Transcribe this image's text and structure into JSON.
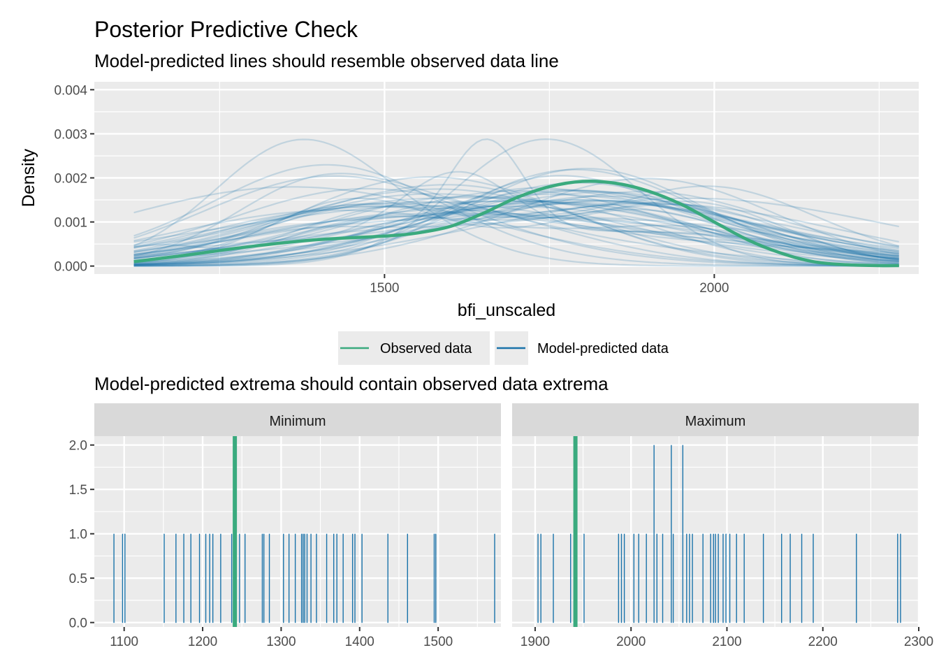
{
  "title": "Posterior Predictive Check",
  "subtitle": "Model-predicted lines should resemble observed data line",
  "subtitle2": "Model-predicted extrema should contain observed data extrema",
  "legend": {
    "observed": "Observed data",
    "predicted": "Model-predicted data",
    "placement": "bottom"
  },
  "colors": {
    "observed": "#3aaa7e",
    "predicted": "#1a73aa",
    "panel": "#ebebeb",
    "strip": "#d9d9d9",
    "grid": "#ffffff"
  },
  "chart_data": [
    {
      "type": "line",
      "title": "Posterior Predictive Check",
      "xlabel": "bfi_unscaled",
      "ylabel": "Density",
      "xlim": [
        1060,
        2310
      ],
      "ylim": [
        -0.00018,
        0.00418
      ],
      "x_ticks": [
        1500,
        2000
      ],
      "x_tick_labels": [
        "1500",
        "2000"
      ],
      "y_ticks": [
        0,
        0.001,
        0.002,
        0.003,
        0.004
      ],
      "y_tick_labels": [
        "0.000",
        "0.001",
        "0.002",
        "0.003",
        "0.004"
      ],
      "grid": true,
      "observed": {
        "name": "Observed data",
        "x": [
          1120,
          1200,
          1300,
          1400,
          1500,
          1550,
          1600,
          1650,
          1700,
          1750,
          1800,
          1850,
          1900,
          1950,
          2000,
          2050,
          2100,
          2150,
          2200,
          2250,
          2280
        ],
        "y": [
          0.0001,
          0.00025,
          0.00045,
          0.0006,
          0.00068,
          0.00075,
          0.0009,
          0.0012,
          0.00155,
          0.0018,
          0.00192,
          0.00188,
          0.0017,
          0.0014,
          0.001,
          0.0006,
          0.0003,
          0.0001,
          3e-05,
          1e-05,
          1e-05
        ]
      },
      "predicted_draws": 50
    },
    {
      "type": "bar",
      "panel": "Minimum",
      "x_ticks": [
        1100,
        1200,
        1300,
        1400,
        1500
      ],
      "x_tick_labels": [
        "1100",
        "1200",
        "1300",
        "1400",
        "1500"
      ],
      "xlim": [
        1062,
        1580
      ],
      "y_ticks": [
        0,
        0.5,
        1,
        1.5,
        2
      ],
      "y_tick_labels": [
        "0.0",
        "0.5",
        "1.0",
        "1.5",
        "2.0"
      ],
      "ylim": [
        -0.05,
        2.1
      ],
      "observed_value": 1241,
      "predicted_values": [
        1087,
        1098,
        1101,
        1151,
        1166,
        1176,
        1185,
        1196,
        1204,
        1209,
        1213,
        1223,
        1237,
        1247,
        1254,
        1276,
        1278,
        1285,
        1303,
        1310,
        1318,
        1326,
        1328,
        1330,
        1333,
        1338,
        1345,
        1358,
        1367,
        1371,
        1379,
        1391,
        1394,
        1403,
        1436,
        1461,
        1495,
        1497,
        1572
      ],
      "counts": [
        1,
        1,
        1,
        1,
        1,
        1,
        1,
        1,
        1,
        1,
        1,
        1,
        1,
        1,
        1,
        1,
        1,
        1,
        1,
        1,
        1,
        1,
        1,
        1,
        1,
        1,
        1,
        1,
        1,
        1,
        1,
        1,
        1,
        1,
        1,
        1,
        1,
        1,
        1
      ]
    },
    {
      "type": "bar",
      "panel": "Maximum",
      "x_ticks": [
        1900,
        2000,
        2100,
        2200,
        2300
      ],
      "x_tick_labels": [
        "1900",
        "2000",
        "2100",
        "2200",
        "2300"
      ],
      "xlim": [
        1876,
        2300
      ],
      "y_ticks": [
        0,
        0.5,
        1,
        1.5,
        2
      ],
      "y_tick_labels": [
        "0.0",
        "0.5",
        "1.0",
        "1.5",
        "2.0"
      ],
      "ylim": [
        -0.05,
        2.1
      ],
      "observed_value": 1942,
      "predicted_values": [
        1903,
        1906,
        1919,
        1937,
        1951,
        1987,
        1990,
        1993,
        2003,
        2008,
        2016,
        2024,
        2027,
        2033,
        2042,
        2044,
        2054,
        2058,
        2061,
        2064,
        2075,
        2083,
        2086,
        2088,
        2091,
        2096,
        2099,
        2103,
        2110,
        2118,
        2138,
        2157,
        2166,
        2178,
        2190,
        2235,
        2278,
        2281
      ],
      "counts": [
        1,
        1,
        1,
        1,
        1,
        1,
        1,
        1,
        1,
        1,
        1,
        2,
        1,
        1,
        2,
        1,
        2,
        1,
        1,
        1,
        1,
        1,
        1,
        1,
        1,
        1,
        1,
        1,
        1,
        1,
        1,
        1,
        1,
        1,
        1,
        1,
        1,
        1
      ]
    }
  ]
}
